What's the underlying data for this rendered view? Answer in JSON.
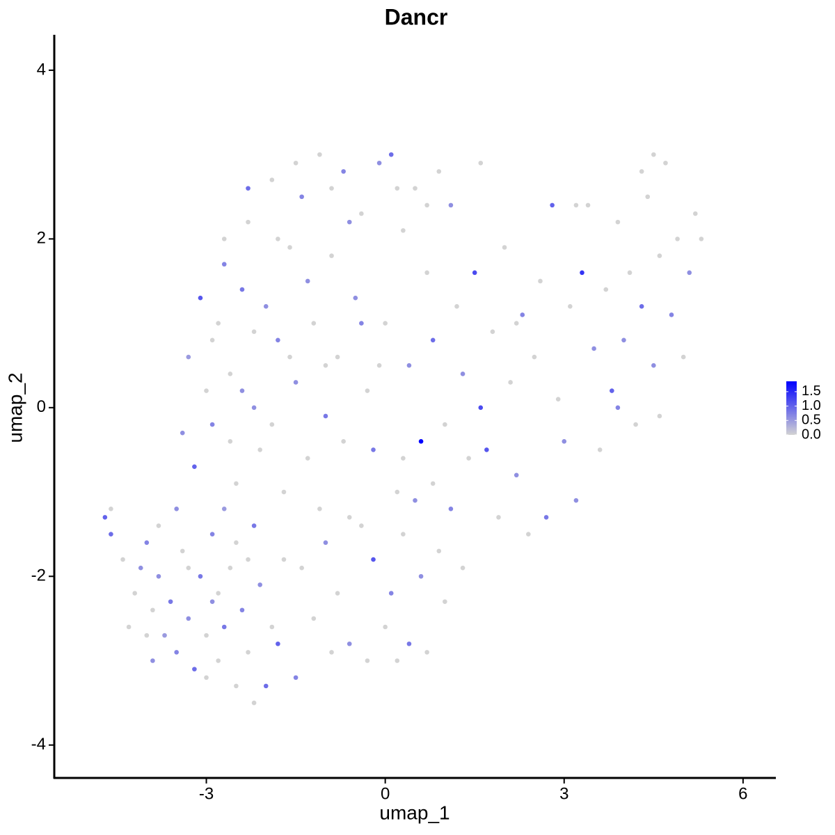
{
  "chart_data": {
    "type": "scatter",
    "title": "Dancr",
    "xlabel": "umap_1",
    "ylabel": "umap_2",
    "xlim": [
      -5.55,
      6.55
    ],
    "ylim": [
      -4.39,
      4.42
    ],
    "xticks": [
      -3,
      0,
      3,
      6
    ],
    "yticks": [
      -4,
      -2,
      0,
      2,
      4
    ],
    "colorlim": [
      0,
      1.86
    ],
    "color_low": "#d3d3d3",
    "color_high": "#0000ff",
    "colorticks": [
      {
        "value": 0,
        "label": "0.0"
      },
      {
        "value": 0.5,
        "label": "0.5"
      },
      {
        "value": 1,
        "label": "1.0"
      },
      {
        "value": 1.5,
        "label": "1.5"
      }
    ],
    "x": [
      -4.7,
      -4.6,
      -4.6,
      -4.4,
      -4.1,
      -4.2,
      -4.0,
      -3.9,
      -3.8,
      -3.7,
      -3.6,
      -3.5,
      -3.4,
      -3.3,
      -3.2,
      -3.1,
      -3.0,
      -2.9,
      -2.9,
      -2.8,
      -2.7,
      -2.6,
      -2.5,
      -2.4,
      -2.3,
      -2.2,
      -2.1,
      -2.0,
      -1.9,
      -1.8,
      -1.7,
      -1.5,
      -4.0,
      -3.8,
      -3.5,
      -3.3,
      -3.0,
      -2.7,
      -2.5,
      -2.2,
      -4.3,
      -3.9,
      -2.8,
      -2.3,
      -3.4,
      -3.3,
      -3.2,
      -3.1,
      -3.0,
      -2.9,
      -2.8,
      -2.7,
      -2.6,
      -2.5,
      -2.4,
      -2.3,
      -2.2,
      -2.1,
      -2.0,
      -1.9,
      -1.8,
      -1.7,
      -1.6,
      -1.5,
      -1.4,
      -1.3,
      -1.2,
      -1.1,
      -1.0,
      -0.9,
      -0.8,
      -0.7,
      -0.6,
      -0.5,
      -0.4,
      -0.3,
      -0.2,
      -0.1,
      0.0,
      0.1,
      0.2,
      0.3,
      0.4,
      0.5,
      0.6,
      0.7,
      0.8,
      0.9,
      1.0,
      1.1,
      -2.9,
      -2.6,
      -2.2,
      -1.9,
      -1.6,
      -1.3,
      -1.0,
      -0.7,
      -0.4,
      -0.1,
      0.3,
      0.8,
      -1.4,
      -1.2,
      -1.0,
      -0.8,
      -0.6,
      -0.4,
      -0.2,
      0.0,
      0.1,
      0.3,
      0.4,
      0.6,
      0.7,
      0.9,
      1.0,
      1.1,
      1.3,
      -1.1,
      -0.3,
      0.2,
      -0.9,
      0.5,
      1.2,
      1.3,
      1.4,
      1.5,
      1.6,
      1.7,
      1.8,
      1.9,
      2.0,
      2.1,
      2.2,
      2.3,
      2.4,
      2.5,
      2.6,
      2.7,
      2.8,
      2.9,
      3.0,
      3.1,
      3.2,
      3.3,
      3.4,
      3.5,
      3.6,
      3.7,
      3.8,
      3.9,
      4.0,
      4.1,
      4.2,
      4.3,
      4.4,
      4.5,
      4.6,
      4.7,
      4.8,
      4.9,
      5.0,
      5.1,
      5.2,
      5.3,
      4.5,
      4.3,
      3.2,
      2.2,
      3.9,
      4.6,
      -2.3,
      -1.8,
      -1.5,
      -0.9,
      -0.6,
      0.2,
      0.7,
      1.6,
      -2.7,
      -2.4
    ],
    "values": [
      -1.3,
      -1.5,
      -1.2,
      -1.8,
      -1.9,
      -2.2,
      -1.6,
      -2.4,
      -2.0,
      -2.7,
      -2.3,
      -2.9,
      -1.7,
      -2.5,
      -3.1,
      -2.0,
      -2.7,
      -1.5,
      -2.3,
      -3.0,
      -2.6,
      -1.9,
      -3.3,
      -2.4,
      -2.9,
      -3.5,
      -2.1,
      -3.3,
      -2.6,
      -2.8,
      -1.8,
      -3.2,
      -2.7,
      -1.4,
      -1.2,
      -1.9,
      -3.2,
      -1.2,
      -1.6,
      -1.4,
      -2.6,
      -3.0,
      -2.2,
      -1.8,
      -0.3,
      0.6,
      -0.7,
      1.3,
      0.2,
      -0.2,
      1.0,
      1.7,
      0.4,
      -0.9,
      1.4,
      2.2,
      0.0,
      -0.5,
      1.2,
      2.7,
      0.8,
      -1.0,
      1.9,
      0.3,
      2.5,
      -0.6,
      1.0,
      3.0,
      -0.1,
      1.8,
      0.6,
      2.8,
      -1.3,
      1.3,
      2.3,
      0.2,
      -0.5,
      2.9,
      1.0,
      3.0,
      -1.0,
      2.1,
      0.5,
      2.6,
      -0.4,
      1.6,
      0.8,
      2.8,
      -0.2,
      2.4,
      0.8,
      -0.4,
      0.9,
      -0.2,
      0.6,
      1.5,
      0.5,
      -0.4,
      1.0,
      0.5,
      -0.6,
      -0.9,
      -1.9,
      -2.5,
      -1.6,
      -2.2,
      -2.8,
      -1.4,
      -1.8,
      -2.6,
      -2.2,
      -1.5,
      -2.8,
      -2.0,
      -2.9,
      -1.7,
      -2.3,
      -1.2,
      -1.9,
      -1.2,
      -3.0,
      -3.0,
      -2.9,
      -1.1,
      1.2,
      0.4,
      -0.6,
      1.6,
      0.0,
      -0.5,
      0.9,
      -1.3,
      1.9,
      0.3,
      -0.8,
      1.1,
      -1.5,
      0.6,
      1.5,
      -1.3,
      2.4,
      0.1,
      -0.4,
      1.2,
      -1.1,
      1.6,
      2.4,
      0.7,
      -0.5,
      1.4,
      0.2,
      2.2,
      0.8,
      1.6,
      -0.2,
      1.2,
      2.5,
      0.5,
      1.8,
      2.9,
      1.1,
      2.0,
      0.6,
      1.6,
      2.3,
      2.0,
      3.0,
      2.8,
      2.4,
      1.0,
      0.0,
      -0.1,
      2.6,
      2.0,
      2.9,
      2.6,
      2.2,
      2.6,
      2.4,
      2.9,
      2.0,
      0.2
    ],
    "color_values": [
      1.0,
      0.9,
      0,
      0,
      0.6,
      0,
      0.7,
      0,
      0.6,
      0.5,
      0.8,
      0.7,
      0,
      0.6,
      0.9,
      0.8,
      0,
      0.7,
      0.6,
      0,
      0.8,
      0,
      0,
      0.7,
      0,
      0,
      0.6,
      0.9,
      0,
      1.0,
      0,
      0.7,
      0,
      0,
      0.6,
      0,
      0,
      0.5,
      0,
      0.8,
      0,
      0.6,
      0,
      0,
      0.6,
      0.5,
      1.0,
      1.1,
      0,
      0.7,
      0,
      0.7,
      0,
      0,
      0.8,
      0,
      0.6,
      0,
      0.6,
      0,
      0.7,
      0,
      0,
      0.6,
      0.7,
      0,
      0,
      0,
      0.8,
      0,
      0,
      0.7,
      0,
      0.6,
      0,
      0,
      0.8,
      0.6,
      0,
      0.9,
      0,
      0,
      0.6,
      0,
      1.85,
      0,
      0.9,
      0,
      0,
      0.6,
      0,
      0,
      0,
      0,
      0,
      0.6,
      0,
      0,
      0.7,
      0,
      0,
      0,
      0,
      0,
      0.6,
      0,
      0.6,
      0,
      1.1,
      0,
      0.7,
      0,
      0.8,
      0.6,
      0,
      0,
      0,
      0.7,
      0,
      0,
      0,
      0,
      0,
      0.6,
      0,
      0.6,
      0,
      1.2,
      1.2,
      1.1,
      0,
      0,
      0,
      0,
      0.6,
      0.7,
      0,
      0,
      0,
      0.8,
      1.0,
      0,
      0.6,
      0,
      0.6,
      1.4,
      0,
      0.6,
      0,
      0,
      1.0,
      0,
      0.6,
      0,
      0,
      0.9,
      0,
      0.6,
      0,
      0,
      0.7,
      0,
      0,
      0.6,
      0,
      0,
      0,
      0,
      0,
      0,
      0.7,
      0,
      0.9,
      0,
      0,
      0,
      0.6,
      0,
      0,
      0,
      0,
      0.6
    ]
  }
}
